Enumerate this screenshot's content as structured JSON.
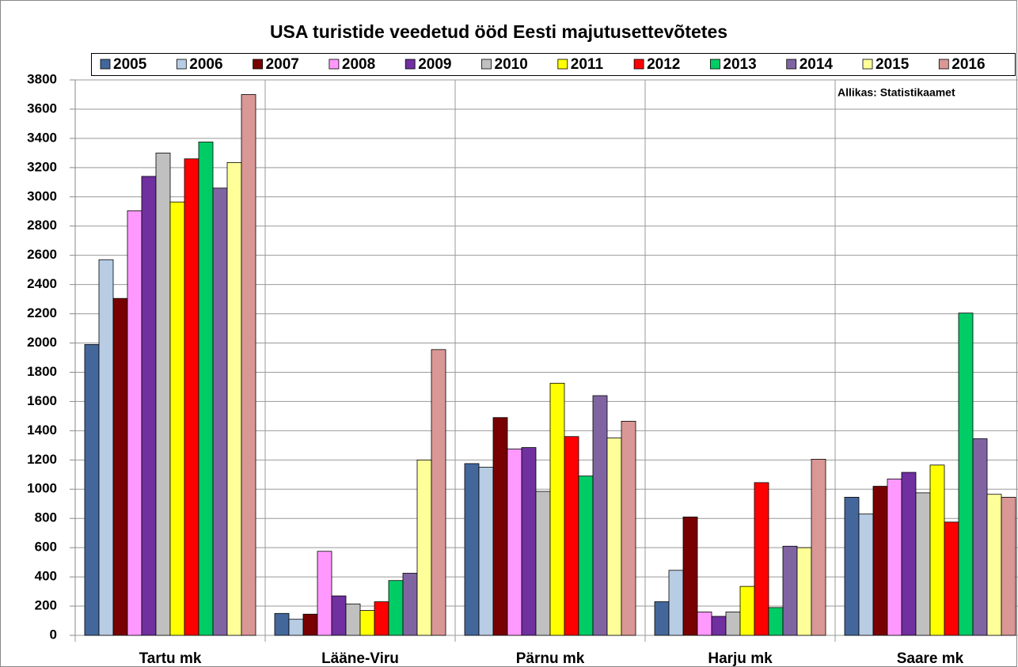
{
  "chart_data": {
    "type": "bar",
    "title": "USA turistide veedetud ööd Eesti majutusettevõtetes",
    "annotation": "Allikas: Statistikaamet",
    "categories": [
      "Tartu mk",
      "Lääne-Viru",
      "Pärnu mk",
      "Harju mk",
      "Saare mk"
    ],
    "series": [
      {
        "name": "2005",
        "color": "#44679b",
        "values": [
          1990,
          150,
          1175,
          230,
          945
        ]
      },
      {
        "name": "2006",
        "color": "#b8cce4",
        "values": [
          2570,
          110,
          1150,
          445,
          830
        ]
      },
      {
        "name": "2007",
        "color": "#780000",
        "values": [
          2305,
          145,
          1490,
          810,
          1020
        ]
      },
      {
        "name": "2008",
        "color": "#ff99ff",
        "values": [
          2905,
          575,
          1275,
          160,
          1070
        ]
      },
      {
        "name": "2009",
        "color": "#7030a0",
        "values": [
          3140,
          270,
          1285,
          130,
          1115
        ]
      },
      {
        "name": "2010",
        "color": "#c0c0c0",
        "values": [
          3300,
          215,
          985,
          160,
          975
        ]
      },
      {
        "name": "2011",
        "color": "#ffff00",
        "values": [
          2965,
          170,
          1725,
          335,
          1165
        ]
      },
      {
        "name": "2012",
        "color": "#ff0000",
        "values": [
          3260,
          230,
          1360,
          1045,
          775
        ]
      },
      {
        "name": "2013",
        "color": "#00cc66",
        "values": [
          3375,
          375,
          1090,
          190,
          2205
        ]
      },
      {
        "name": "2014",
        "color": "#8064a2",
        "values": [
          3060,
          425,
          1640,
          610,
          1345
        ]
      },
      {
        "name": "2015",
        "color": "#ffff99",
        "values": [
          3235,
          1200,
          1350,
          600,
          965
        ]
      },
      {
        "name": "2016",
        "color": "#d99795",
        "values": [
          3700,
          1955,
          1465,
          1205,
          945
        ]
      }
    ],
    "ylim": [
      0,
      3800
    ],
    "yticks": [
      0,
      200,
      400,
      600,
      800,
      1000,
      1200,
      1400,
      1600,
      1800,
      2000,
      2200,
      2400,
      2600,
      2800,
      3000,
      3200,
      3400,
      3600,
      3800
    ],
    "grid": true
  }
}
